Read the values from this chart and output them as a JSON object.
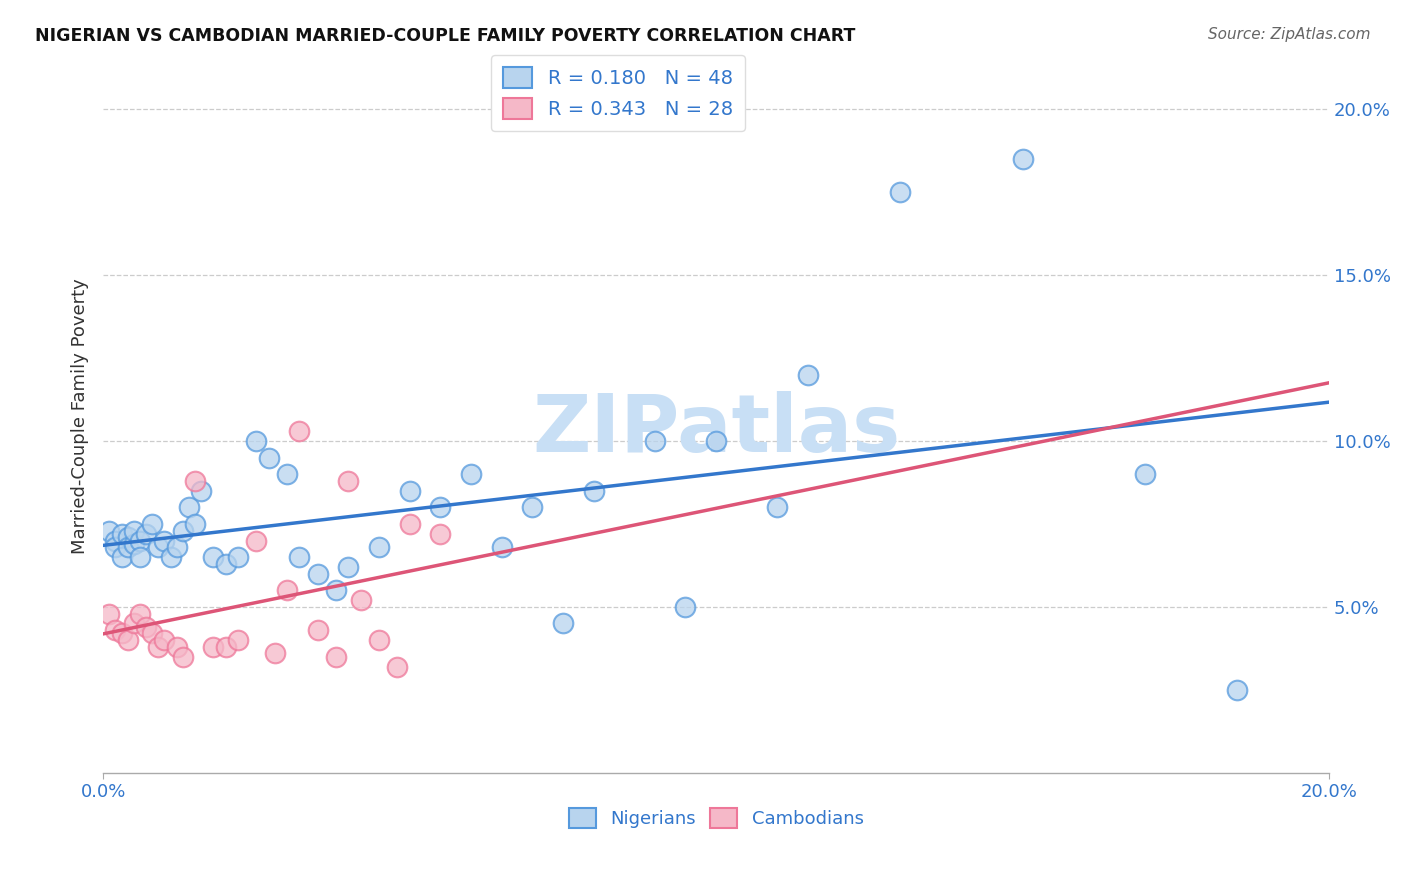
{
  "title": "NIGERIAN VS CAMBODIAN MARRIED-COUPLE FAMILY POVERTY CORRELATION CHART",
  "source": "Source: ZipAtlas.com",
  "ylabel": "Married-Couple Family Poverty",
  "xmin": 0.0,
  "xmax": 0.2,
  "ymin": 0.0,
  "ymax": 0.215,
  "xtick_vals": [
    0.0,
    0.2
  ],
  "xtick_labels": [
    "0.0%",
    "20.0%"
  ],
  "ytick_vals": [
    0.05,
    0.1,
    0.15,
    0.2
  ],
  "ytick_labels": [
    "5.0%",
    "10.0%",
    "15.0%",
    "20.0%"
  ],
  "nigerian_R": 0.18,
  "nigerian_N": 48,
  "cambodian_R": 0.343,
  "cambodian_N": 28,
  "nigerian_fill_color": "#b8d4ee",
  "cambodian_fill_color": "#f5b8c8",
  "nigerian_edge_color": "#5599dd",
  "cambodian_edge_color": "#ee7799",
  "nigerian_line_color": "#3377cc",
  "cambodian_line_color": "#dd5577",
  "label_color": "#3377cc",
  "watermark_color": "#c8dff5",
  "nigerian_x": [
    0.001,
    0.002,
    0.002,
    0.003,
    0.003,
    0.004,
    0.004,
    0.005,
    0.005,
    0.006,
    0.006,
    0.007,
    0.008,
    0.009,
    0.01,
    0.011,
    0.012,
    0.013,
    0.014,
    0.015,
    0.016,
    0.018,
    0.02,
    0.022,
    0.025,
    0.027,
    0.03,
    0.032,
    0.035,
    0.038,
    0.04,
    0.045,
    0.05,
    0.055,
    0.06,
    0.065,
    0.07,
    0.075,
    0.08,
    0.09,
    0.095,
    0.1,
    0.11,
    0.115,
    0.13,
    0.15,
    0.17,
    0.185
  ],
  "nigerian_y": [
    0.073,
    0.07,
    0.068,
    0.072,
    0.065,
    0.071,
    0.068,
    0.069,
    0.073,
    0.07,
    0.065,
    0.072,
    0.075,
    0.068,
    0.07,
    0.065,
    0.068,
    0.073,
    0.08,
    0.075,
    0.085,
    0.065,
    0.063,
    0.065,
    0.1,
    0.095,
    0.09,
    0.065,
    0.06,
    0.055,
    0.062,
    0.068,
    0.085,
    0.08,
    0.09,
    0.068,
    0.08,
    0.045,
    0.085,
    0.1,
    0.05,
    0.1,
    0.08,
    0.12,
    0.175,
    0.185,
    0.09,
    0.025
  ],
  "cambodian_x": [
    0.001,
    0.002,
    0.003,
    0.004,
    0.005,
    0.006,
    0.007,
    0.008,
    0.009,
    0.01,
    0.012,
    0.013,
    0.015,
    0.018,
    0.02,
    0.022,
    0.025,
    0.028,
    0.03,
    0.032,
    0.035,
    0.038,
    0.04,
    0.042,
    0.045,
    0.048,
    0.05,
    0.055
  ],
  "cambodian_y": [
    0.048,
    0.043,
    0.042,
    0.04,
    0.045,
    0.048,
    0.044,
    0.042,
    0.038,
    0.04,
    0.038,
    0.035,
    0.088,
    0.038,
    0.038,
    0.04,
    0.07,
    0.036,
    0.055,
    0.103,
    0.043,
    0.035,
    0.088,
    0.052,
    0.04,
    0.032,
    0.075,
    0.072
  ]
}
